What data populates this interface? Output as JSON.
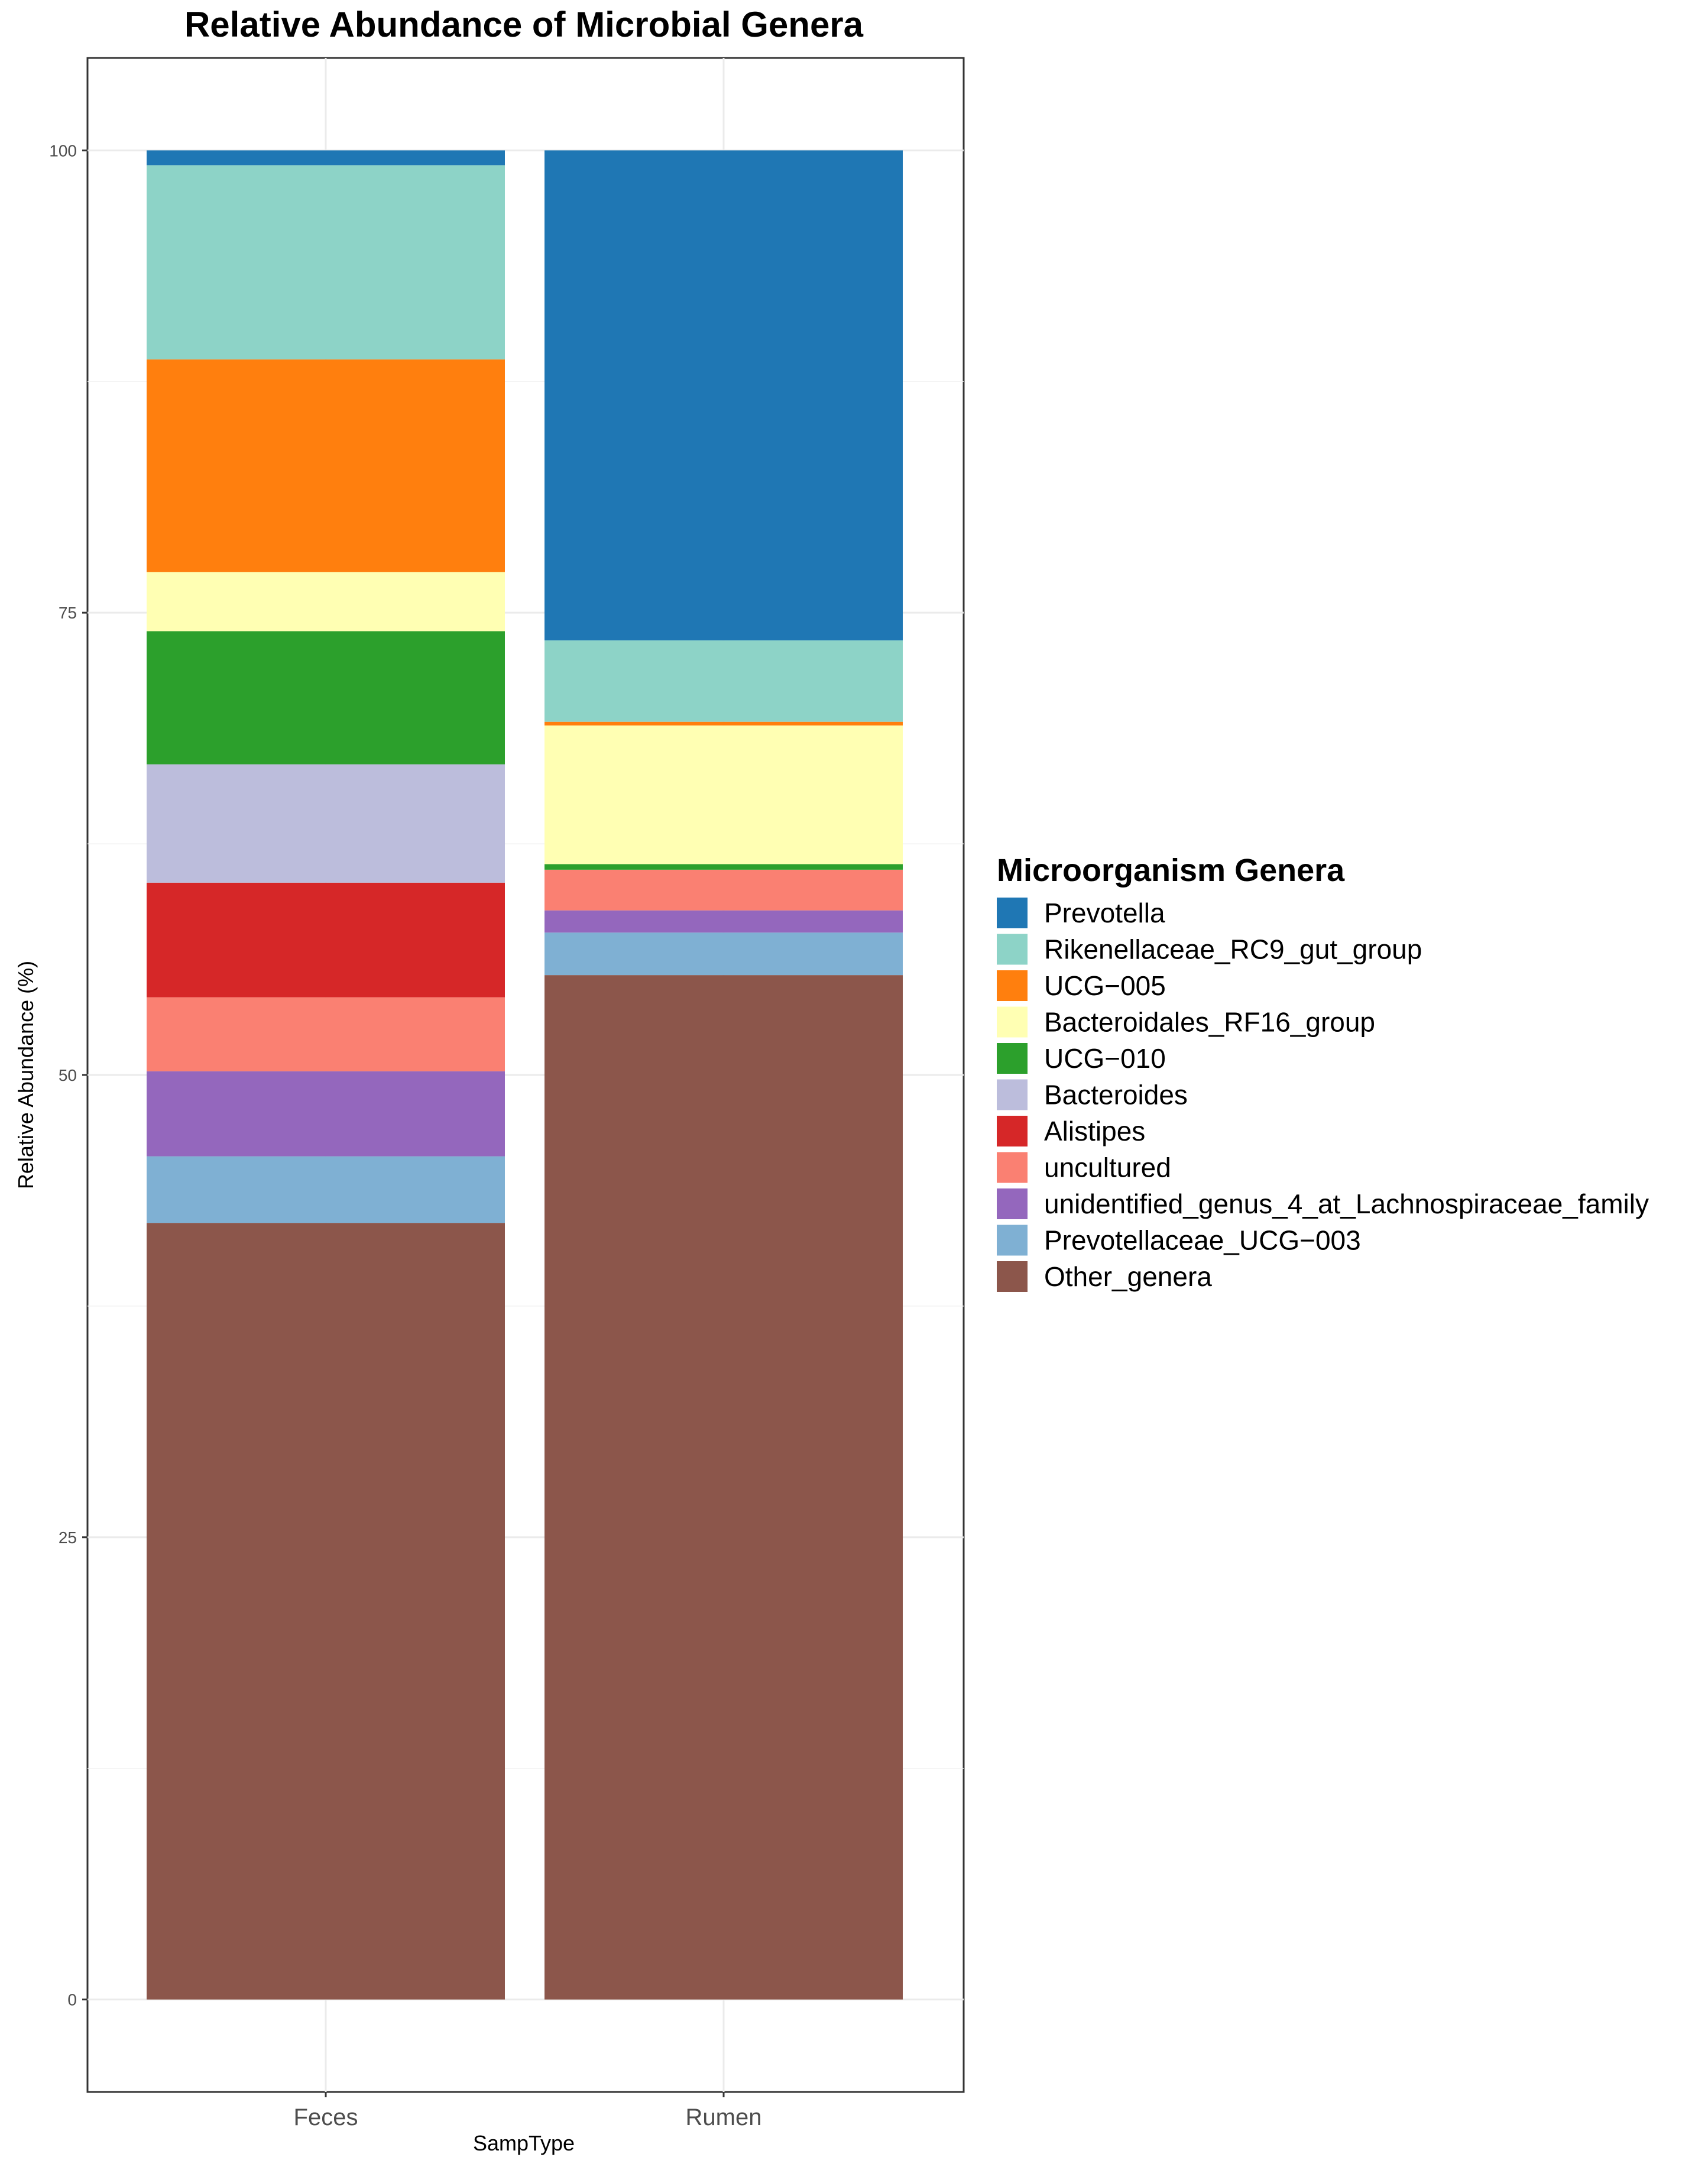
{
  "chart_data": {
    "type": "bar",
    "stacked": true,
    "title": "Relative Abundance of Microbial Genera",
    "xlabel": "SampType",
    "ylabel": "Relative Abundance (%)",
    "ylim": [
      -5,
      105
    ],
    "yticks": [
      0,
      25,
      50,
      75,
      100
    ],
    "grid": true,
    "categories": [
      "Feces",
      "Rumen"
    ],
    "legend": {
      "title": "Microorganism Genera",
      "position": "right"
    },
    "series": [
      {
        "name": "Other_genera",
        "color": "#8c564b",
        "values": [
          42.0,
          55.4
        ]
      },
      {
        "name": "Prevotellaceae_UCG−003",
        "color": "#7fb0d3",
        "values": [
          3.6,
          2.3
        ]
      },
      {
        "name": "unidentified_genus_4_at_Lachnospiraceae_family",
        "color": "#9467bd",
        "values": [
          4.6,
          1.2
        ]
      },
      {
        "name": "uncultured",
        "color": "#fa8072",
        "values": [
          4.0,
          2.2
        ]
      },
      {
        "name": "Alistipes",
        "color": "#d62728",
        "values": [
          6.2,
          0.0
        ]
      },
      {
        "name": "Bacteroides",
        "color": "#bcbddc",
        "values": [
          6.4,
          0.0
        ]
      },
      {
        "name": "UCG−010",
        "color": "#2ca02c",
        "values": [
          7.2,
          0.3
        ]
      },
      {
        "name": "Bacteroidales_RF16_group",
        "color": "#ffffb3",
        "values": [
          3.2,
          7.5
        ]
      },
      {
        "name": "UCG−005",
        "color": "#ff7f0e",
        "values": [
          11.5,
          0.2
        ]
      },
      {
        "name": "Rikenellaceae_RC9_gut_group",
        "color": "#8dd3c7",
        "values": [
          10.5,
          4.4
        ]
      },
      {
        "name": "Prevotella",
        "color": "#1f77b4",
        "values": [
          0.8,
          26.5
        ]
      }
    ]
  }
}
